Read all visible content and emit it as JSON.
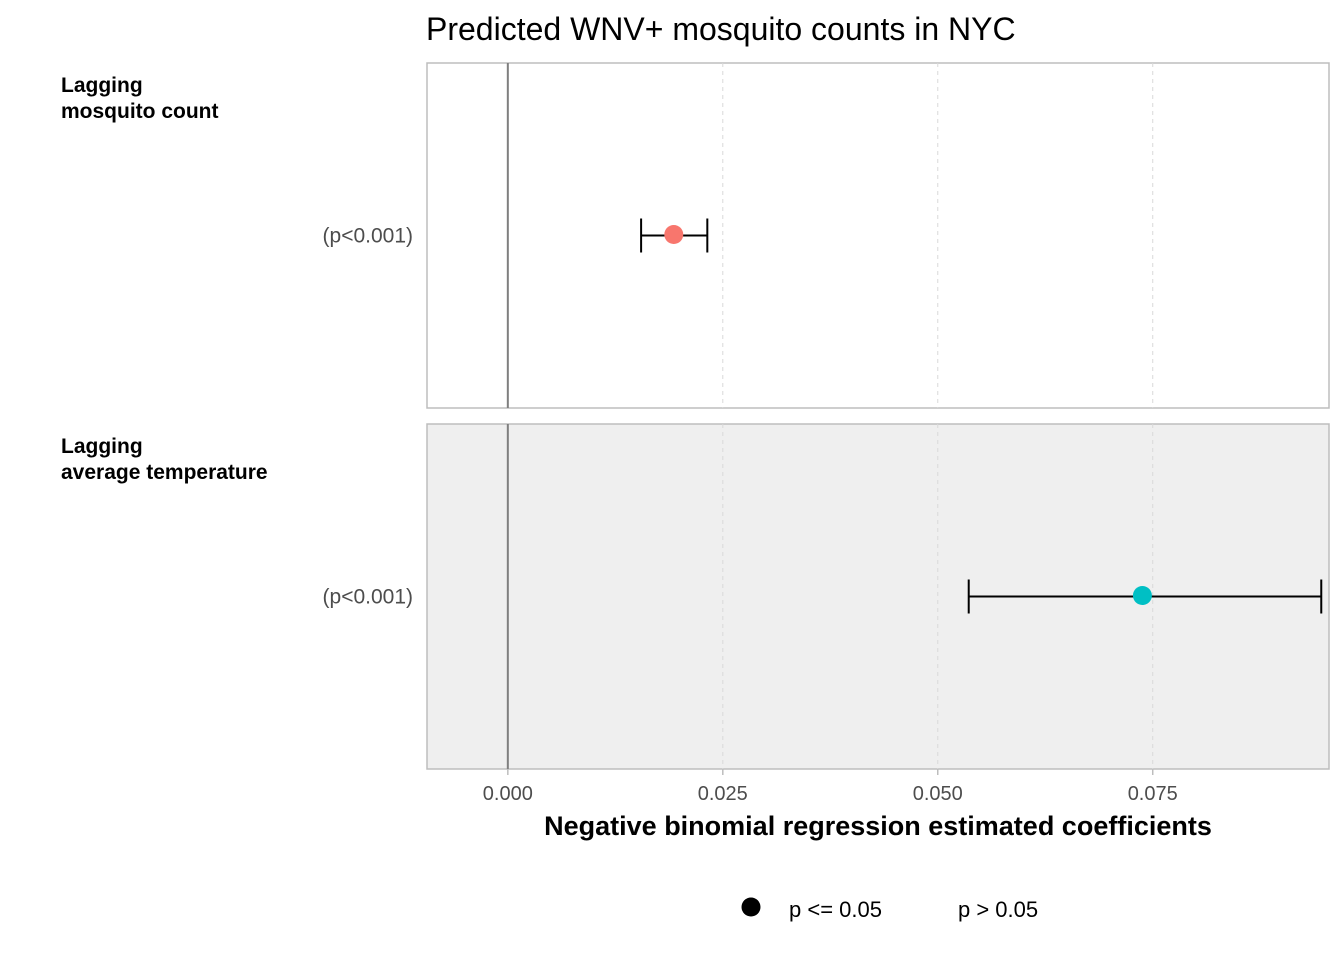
{
  "chart_data": {
    "type": "forest",
    "title": "Predicted WNV+ mosquito counts in NYC",
    "xlabel": "Negative binomial regression estimated coefficients",
    "xlim": [
      -0.0094,
      0.0955
    ],
    "xticks": [
      0.0,
      0.025,
      0.05,
      0.075
    ],
    "xtick_labels": [
      "0.000",
      "0.025",
      "0.050",
      "0.075"
    ],
    "reference_line": 0.0,
    "grid": "vertical-dashed",
    "facets": [
      {
        "label_line1": "Lagging",
        "label_line2": "mosquito count",
        "ytick": "(p<0.001)",
        "estimate": 0.0193,
        "ci_low": 0.0155,
        "ci_high": 0.0232,
        "color": "#F8766D",
        "background": "#FFFFFF"
      },
      {
        "label_line1": "Lagging",
        "label_line2": "average temperature",
        "ytick": "(p<0.001)",
        "estimate": 0.0738,
        "ci_low": 0.0536,
        "ci_high": 0.0946,
        "color": "#00BFC4",
        "background": "#EFEFEF"
      }
    ],
    "legend": {
      "position": "bottom",
      "items": [
        {
          "label": "p <= 0.05",
          "shape": "filled-circle"
        },
        {
          "label": "p > 0.05",
          "shape": "none"
        }
      ]
    }
  }
}
